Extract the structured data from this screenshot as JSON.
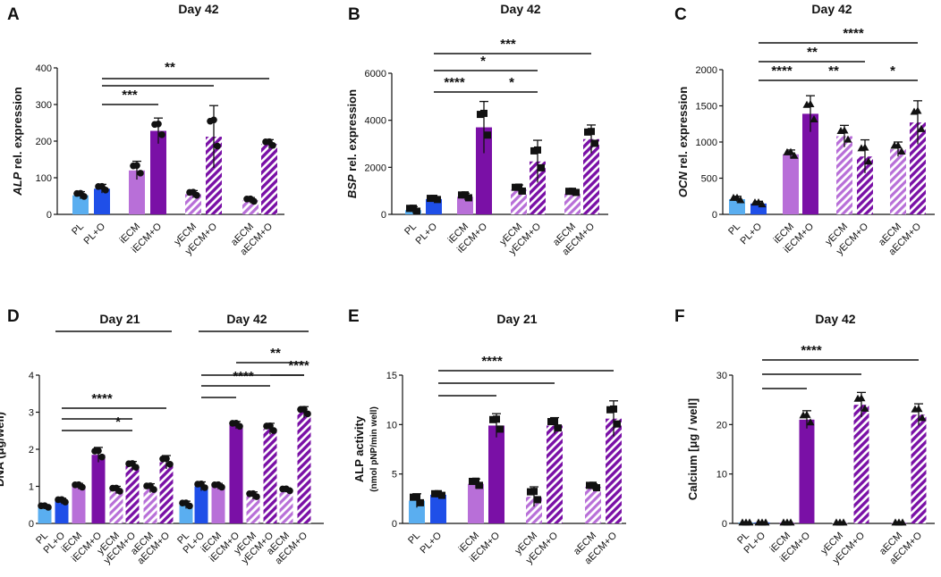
{
  "colors": {
    "light_blue": "#5aaef0",
    "blue": "#1f4fe8",
    "light_purple": "#b86fd8",
    "purple": "#7a10a6",
    "ink": "#111111"
  },
  "chart_data": [
    {
      "id": "A",
      "panel_letter": "A",
      "type": "bar",
      "title": "Day 42",
      "ylabel_italic": "ALP",
      "ylabel_rest": " rel. expression",
      "ylim": [
        0,
        400
      ],
      "yticks": [
        "0",
        "100",
        "200",
        "300",
        "400"
      ],
      "categories": [
        "PL",
        "PL+O",
        "iECM",
        "iECM+O",
        "yECM",
        "yECM+O",
        "aECM",
        "aECM+O"
      ],
      "values": [
        52,
        70,
        120,
        228,
        55,
        212,
        38,
        192
      ],
      "errors": [
        10,
        12,
        25,
        35,
        10,
        85,
        8,
        12
      ],
      "marker": "circle",
      "significance": [
        {
          "from": "PL+O",
          "to": "iECM+O",
          "label": "***"
        },
        {
          "from": "PL+O",
          "to": "yECM+O",
          "label": ""
        },
        {
          "from": "PL+O",
          "to": "aECM+O",
          "label": "**"
        }
      ]
    },
    {
      "id": "B",
      "panel_letter": "B",
      "type": "bar",
      "title": "Day 42",
      "ylabel_italic": "BSP",
      "ylabel_rest": " rel. expression",
      "ylim": [
        0,
        6000
      ],
      "yticks": [
        "0",
        "2000",
        "4000",
        "6000"
      ],
      "categories": [
        "PL",
        "PL+O",
        "iECM",
        "iECM+O",
        "yECM",
        "yECM+O",
        "aECM",
        "aECM+O"
      ],
      "values": [
        180,
        650,
        750,
        3700,
        1050,
        2250,
        950,
        3200
      ],
      "errors": [
        150,
        60,
        150,
        1100,
        200,
        900,
        60,
        600
      ],
      "marker": "square",
      "significance": [
        {
          "from": "PL+O",
          "to": "iECM+O",
          "label": "****"
        },
        {
          "from": "iECM+O",
          "to": "yECM+O",
          "label": "*"
        },
        {
          "from": "PL+O",
          "to": "yECM+O",
          "label": "*"
        },
        {
          "from": "PL+O",
          "to": "aECM+O",
          "label": "***"
        }
      ]
    },
    {
      "id": "C",
      "panel_letter": "C",
      "type": "bar",
      "title": "Day 42",
      "ylabel_italic": "OCN",
      "ylabel_rest": " rel. expression",
      "ylim": [
        0,
        2000
      ],
      "yticks": [
        "0",
        "500",
        "1000",
        "1500",
        "2000"
      ],
      "categories": [
        "PL",
        "PL+O",
        "iECM",
        "iECM+O",
        "yECM",
        "yECM+O",
        "aECM",
        "aECM+O"
      ],
      "values": [
        210,
        150,
        830,
        1390,
        1080,
        800,
        900,
        1270
      ],
      "errors": [
        40,
        30,
        60,
        250,
        150,
        230,
        100,
        300
      ],
      "marker": "triangle",
      "significance": [
        {
          "from": "PL+O",
          "to": "iECM+O",
          "label": "****"
        },
        {
          "from": "iECM+O",
          "to": "yECM+O",
          "label": "**"
        },
        {
          "from": "yECM+O",
          "to": "aECM+O",
          "label": "*"
        },
        {
          "from": "PL+O",
          "to": "yECM+O",
          "label": "**"
        },
        {
          "from": "PL+O",
          "to": "aECM+O",
          "label": "****"
        }
      ]
    },
    {
      "id": "D",
      "panel_letter": "D",
      "type": "bar",
      "title": "",
      "group_titles": [
        "Day 21",
        "Day 42"
      ],
      "ylabel_italic": "",
      "ylabel_rest": "DNA (μg/well)",
      "ylim": [
        0,
        4
      ],
      "yticks": [
        "0",
        "1",
        "2",
        "3",
        "4"
      ],
      "categories": [
        "PL",
        "PL+O",
        "iECM",
        "iECM+O",
        "yECM",
        "yECM+O",
        "aECM",
        "aECM+O",
        "PL",
        "PL+O",
        "iECM",
        "iECM+O",
        "yECM",
        "yECM+O",
        "aECM",
        "aECM+O"
      ],
      "values": [
        0.45,
        0.6,
        1.0,
        1.85,
        0.9,
        1.55,
        0.95,
        1.65,
        0.5,
        1.0,
        1.0,
        2.65,
        0.75,
        2.55,
        0.9,
        3.0
      ],
      "errors": [
        0.05,
        0.08,
        0.08,
        0.2,
        0.1,
        0.12,
        0.12,
        0.18,
        0.1,
        0.12,
        0.08,
        0.1,
        0.1,
        0.15,
        0.06,
        0.15
      ],
      "marker": "circle",
      "significance": [
        {
          "from": "PL+O",
          "to": "iECM+O",
          "label": ""
        },
        {
          "from": "iECM+O",
          "to": "yECM+O",
          "label": "*"
        },
        {
          "from": "PL+O",
          "to": "yECM+O",
          "label": ""
        },
        {
          "from": "PL+O",
          "to": "aECM+O",
          "label": "****"
        },
        {
          "from": "PL+O@2",
          "to": "iECM+O@2",
          "label": ""
        },
        {
          "from": "PL+O@2",
          "to": "yECM+O@2",
          "label": "****"
        },
        {
          "from": "PL+O@2",
          "to": "aECM+O@2",
          "label": ""
        },
        {
          "from": "yECM+O@2",
          "to": "aECM+O@2",
          "label": "****"
        },
        {
          "from": "iECM+O@2",
          "to": "aECM+O@2",
          "label": "**"
        }
      ]
    },
    {
      "id": "E",
      "panel_letter": "E",
      "type": "bar",
      "title": "Day 21",
      "ylabel_italic": "",
      "ylabel_rest": "ALP activity",
      "ylabel_sub": "(nmol pNP/min well)",
      "ylim": [
        0,
        15
      ],
      "yticks": [
        "0",
        "5",
        "10",
        "15"
      ],
      "categories": [
        "PL",
        "PL+O",
        "iECM",
        "iECM+O",
        "yECM",
        "yECM+O",
        "aECM",
        "aECM+O"
      ],
      "values": [
        2.3,
        2.9,
        4.0,
        9.9,
        2.7,
        9.9,
        3.7,
        10.6
      ],
      "errors": [
        0.7,
        0.2,
        0.5,
        1.2,
        1.0,
        0.8,
        0.3,
        1.8
      ],
      "marker": "square",
      "significance": [
        {
          "from": "PL+O",
          "to": "iECM+O",
          "label": ""
        },
        {
          "from": "PL+O",
          "to": "yECM+O",
          "label": ""
        },
        {
          "from": "PL+O",
          "to": "aECM+O",
          "label": "****"
        }
      ]
    },
    {
      "id": "F",
      "panel_letter": "F",
      "type": "bar",
      "title": "Day 42",
      "ylabel_italic": "",
      "ylabel_rest": "Calcium [μg / well]",
      "ylim": [
        0,
        30
      ],
      "yticks": [
        "0",
        "10",
        "20",
        "30"
      ],
      "categories": [
        "PL",
        "PL+O",
        "iECM",
        "iECM+O",
        "yECM",
        "yECM+O",
        "aECM",
        "aECM+O"
      ],
      "values": [
        0.2,
        0.2,
        0.2,
        21.0,
        0.2,
        24.0,
        0.2,
        22.0
      ],
      "errors": [
        0,
        0,
        0,
        1.8,
        0,
        2.5,
        0,
        2.2
      ],
      "marker": "triangle",
      "significance": [
        {
          "from": "PL+O",
          "to": "iECM+O",
          "label": ""
        },
        {
          "from": "PL+O",
          "to": "yECM+O",
          "label": ""
        },
        {
          "from": "PL+O",
          "to": "aECM+O",
          "label": "****"
        }
      ]
    }
  ]
}
